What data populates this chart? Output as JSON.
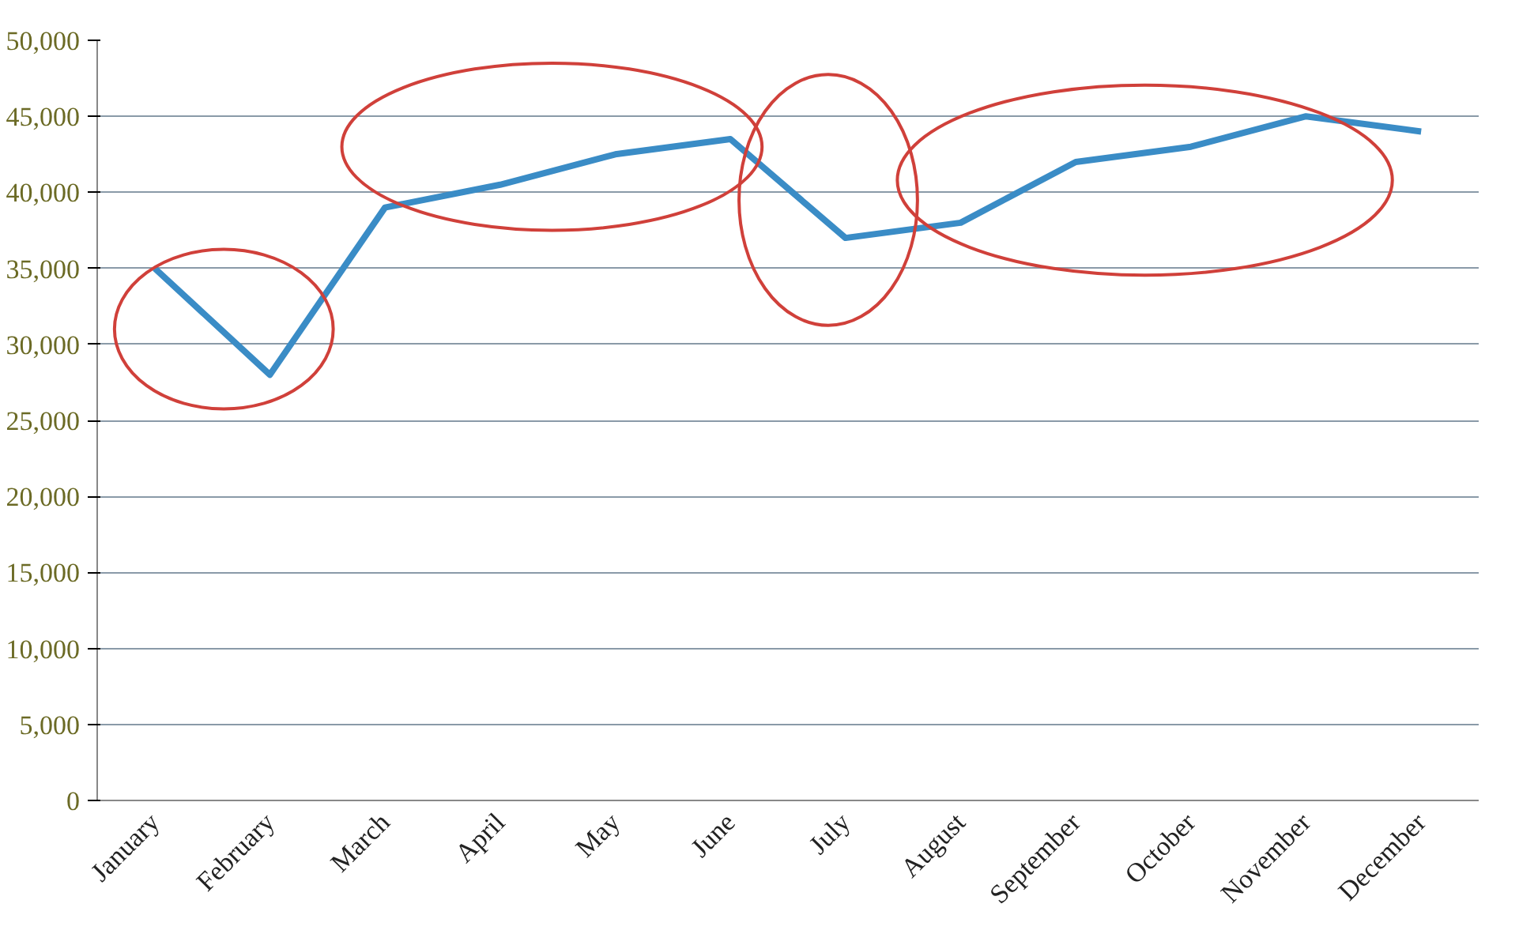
{
  "chart_data": {
    "type": "line",
    "categories": [
      "January",
      "February",
      "March",
      "April",
      "May",
      "June",
      "July",
      "August",
      "September",
      "October",
      "November",
      "December"
    ],
    "series": [
      {
        "color": "#3a8cc6",
        "values": [
          35000,
          28000,
          39000,
          40500,
          42500,
          43500,
          37000,
          38000,
          42000,
          43000,
          45000,
          44000
        ]
      }
    ],
    "ylim": [
      0,
      50000
    ],
    "yticks": [
      {
        "value": 0,
        "label": "0"
      },
      {
        "value": 5000,
        "label": "5,000"
      },
      {
        "value": 10000,
        "label": "10,000"
      },
      {
        "value": 15000,
        "label": "15,000"
      },
      {
        "value": 20000,
        "label": "20,000"
      },
      {
        "value": 25000,
        "label": "25,000"
      },
      {
        "value": 30000,
        "label": "30,000"
      },
      {
        "value": 35000,
        "label": "35,000"
      },
      {
        "value": 40000,
        "label": "40,000"
      },
      {
        "value": 45000,
        "label": "45,000"
      },
      {
        "value": 50000,
        "label": "50,000"
      }
    ],
    "grid": "y",
    "marker": "none",
    "line_style": "solid"
  }
}
